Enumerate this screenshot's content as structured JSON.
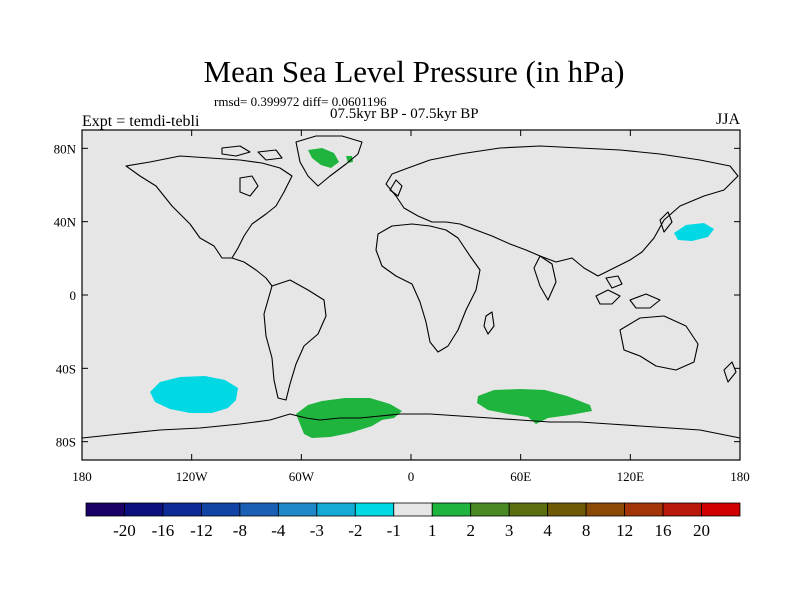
{
  "header": {
    "title": "Mean Sea Level Pressure (in hPa)",
    "stats": "rmsd= 0.399972 diff= 0.0601196",
    "period": "07.5kyr BP - 07.5kyr BP",
    "experiment": "Expt = temdi-tebli",
    "season": "JJA"
  },
  "map": {
    "background_color": "#e6e6e6",
    "x_ticks": [
      {
        "lon": -180,
        "label": "180"
      },
      {
        "lon": -120,
        "label": "120W"
      },
      {
        "lon": -60,
        "label": "60W"
      },
      {
        "lon": 0,
        "label": "0"
      },
      {
        "lon": 60,
        "label": "60E"
      },
      {
        "lon": 120,
        "label": "120E"
      },
      {
        "lon": 180,
        "label": "180"
      }
    ],
    "y_ticks": [
      {
        "lat": 80,
        "label": "80N"
      },
      {
        "lat": 40,
        "label": "40N"
      },
      {
        "lat": 0,
        "label": "0"
      },
      {
        "lat": -40,
        "label": "40S"
      },
      {
        "lat": -80,
        "label": "80S"
      }
    ],
    "anomaly_regions": [
      {
        "name": "greenland-positive-anomaly",
        "class": "1 to 2",
        "color": "#1fb43d"
      },
      {
        "name": "north-pacific-negative-anomaly",
        "class": "-2 to -1",
        "color": "#00d8e3"
      },
      {
        "name": "south-pacific-negative-anomaly",
        "class": "-2 to -1",
        "color": "#00d8e3"
      },
      {
        "name": "south-atlantic-positive-anomaly",
        "class": "1 to 2",
        "color": "#1fb43d"
      },
      {
        "name": "south-indian-positive-anomaly",
        "class": "1 to 2",
        "color": "#1fb43d"
      }
    ]
  },
  "colorbar": {
    "colors": [
      "#1a0066",
      "#0b107e",
      "#0d2a96",
      "#1244a6",
      "#1a5fb4",
      "#1e88c8",
      "#14aad6",
      "#00d8e3",
      "#e6e6e6",
      "#1fb43d",
      "#4a8a24",
      "#5b6e10",
      "#6e5a06",
      "#8a4a06",
      "#a33408",
      "#b8180a",
      "#d00000"
    ],
    "labels": [
      "-20",
      "-16",
      "-12",
      "-8",
      "-4",
      "-3",
      "-2",
      "-1",
      "1",
      "2",
      "3",
      "4",
      "8",
      "12",
      "16",
      "20"
    ]
  }
}
